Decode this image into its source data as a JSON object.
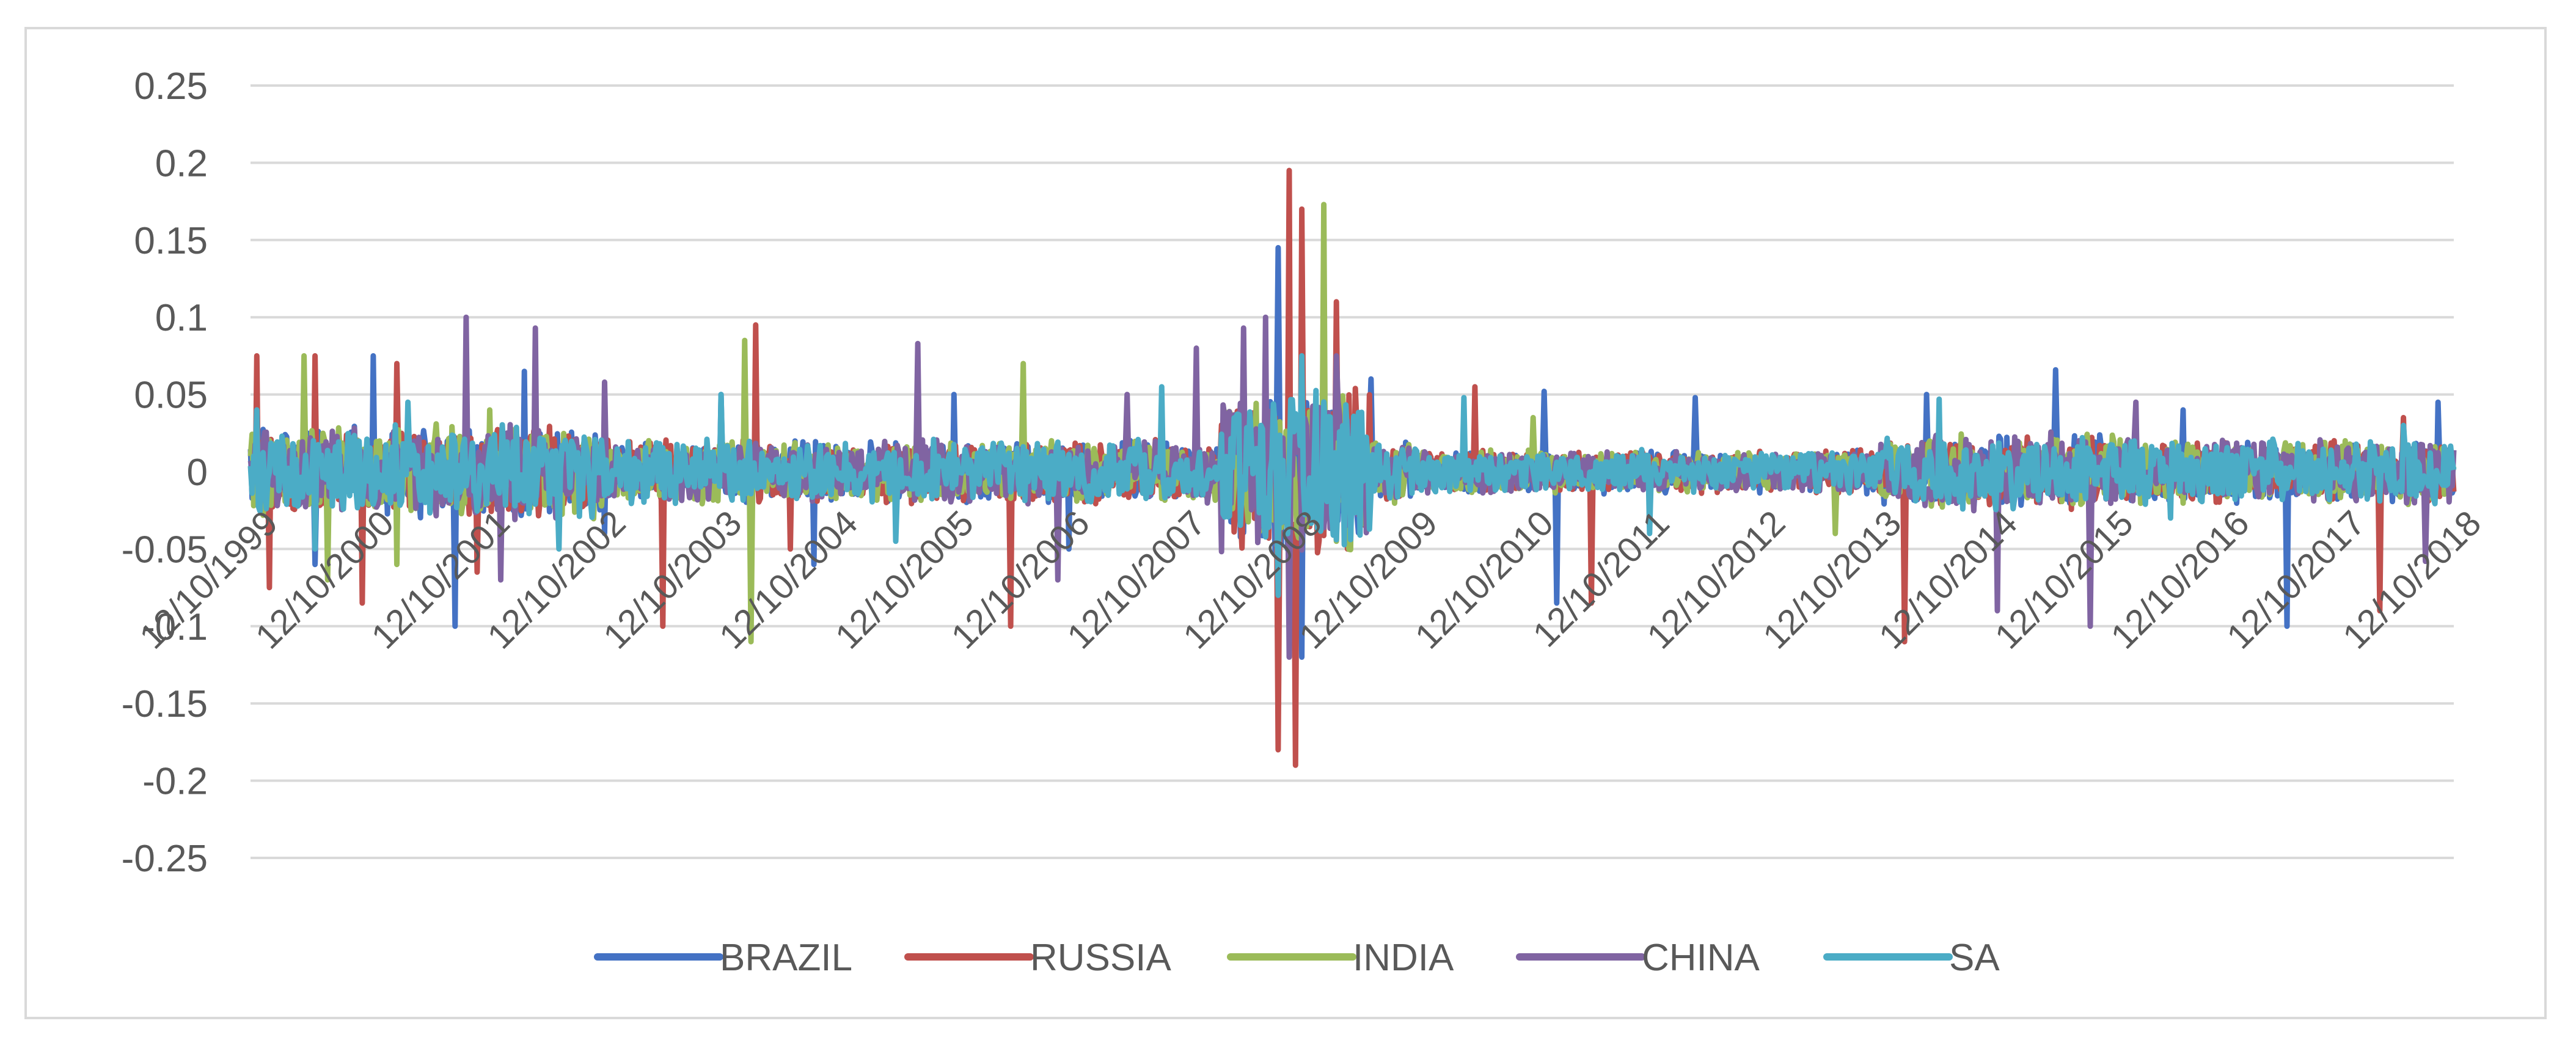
{
  "chart_data": {
    "type": "line",
    "title": "",
    "xlabel": "",
    "ylabel": "",
    "ylim": [
      -0.25,
      0.25
    ],
    "y_ticks": [
      "0.25",
      "0.2",
      "0.15",
      "0.1",
      "0.05",
      "0",
      "-0.05",
      "-0.1",
      "-0.15",
      "-0.2",
      "-0.25"
    ],
    "y_tick_values": [
      0.25,
      0.2,
      0.15,
      0.1,
      0.05,
      0,
      -0.05,
      -0.1,
      -0.15,
      -0.2,
      -0.25
    ],
    "x_ticks": [
      "12/10/1999",
      "12/10/2000",
      "12/10/2001",
      "12/10/2002",
      "12/10/2003",
      "12/10/2004",
      "12/10/2005",
      "12/10/2006",
      "12/10/2007",
      "12/10/2008",
      "12/10/2009",
      "12/10/2010",
      "12/10/2011",
      "12/10/2012",
      "12/10/2013",
      "12/10/2014",
      "12/10/2015",
      "12/10/2016",
      "12/10/2017",
      "12/10/2018"
    ],
    "x_range": [
      "12/10/1999",
      "12/10/2018"
    ],
    "grid": true,
    "legend_position": "bottom",
    "series": [
      {
        "name": "BRAZIL",
        "color": "#4472c4",
        "points": [
          [
            "2000",
            0.05
          ],
          [
            "2000.5",
            -0.06
          ],
          [
            "2001",
            0.075
          ],
          [
            "2001.7",
            -0.1
          ],
          [
            "2002.3",
            0.065
          ],
          [
            "2003",
            -0.04
          ],
          [
            "2004",
            0.05
          ],
          [
            "2004.8",
            -0.06
          ],
          [
            "2006",
            0.05
          ],
          [
            "2007",
            -0.05
          ],
          [
            "2008.8",
            0.145
          ],
          [
            "2009",
            -0.12
          ],
          [
            "2009.6",
            0.06
          ],
          [
            "2011.1",
            0.052
          ],
          [
            "2011.2",
            -0.085
          ],
          [
            "2012.4",
            0.048
          ],
          [
            "2014.4",
            0.05
          ],
          [
            "2015.5",
            0.066
          ],
          [
            "2016.6",
            0.04
          ],
          [
            "2017.5",
            -0.1
          ],
          [
            "2018.8",
            0.045
          ]
        ]
      },
      {
        "name": "RUSSIA",
        "color": "#c0504d",
        "points": [
          [
            "2000",
            0.075
          ],
          [
            "2000.1",
            -0.075
          ],
          [
            "2000.5",
            0.075
          ],
          [
            "2000.9",
            -0.085
          ],
          [
            "2001.2",
            0.07
          ],
          [
            "2001.9",
            -0.065
          ],
          [
            "2003.5",
            0.08
          ],
          [
            "2003.5",
            -0.1
          ],
          [
            "2004.3",
            0.095
          ],
          [
            "2004.6",
            -0.05
          ],
          [
            "2006.5",
            0.105
          ],
          [
            "2006.5",
            -0.1
          ],
          [
            "2008.8",
            -0.18
          ],
          [
            "2008.9",
            0.195
          ],
          [
            "2008.95",
            -0.19
          ],
          [
            "2009.0",
            0.17
          ],
          [
            "2009.3",
            0.11
          ],
          [
            "2009.4",
            -0.05
          ],
          [
            "2010.5",
            0.055
          ],
          [
            "2011.5",
            -0.085
          ],
          [
            "2014.2",
            0.055
          ],
          [
            "2014.2",
            -0.11
          ],
          [
            "2018.3",
            -0.09
          ],
          [
            "2018.5",
            0.035
          ]
        ]
      },
      {
        "name": "INDIA",
        "color": "#9bbb59",
        "points": [
          [
            "2000.4",
            0.075
          ],
          [
            "2000.6",
            -0.07
          ],
          [
            "2001.2",
            -0.06
          ],
          [
            "2002.0",
            0.04
          ],
          [
            "2004.2",
            0.085
          ],
          [
            "2004.25",
            -0.11
          ],
          [
            "2006.6",
            0.07
          ],
          [
            "2008.9",
            -0.1
          ],
          [
            "2009.2",
            0.173
          ],
          [
            "2009.3",
            -0.045
          ],
          [
            "2011.0",
            0.035
          ],
          [
            "2013.6",
            -0.04
          ],
          [
            "2018.0",
            0.02
          ]
        ]
      },
      {
        "name": "CHINA",
        "color": "#8064a2",
        "points": [
          [
            "2001.8",
            0.1
          ],
          [
            "2002.1",
            -0.07
          ],
          [
            "2002.4",
            0.093
          ],
          [
            "2003.0",
            0.058
          ],
          [
            "2005.7",
            0.083
          ],
          [
            "2006.9",
            -0.07
          ],
          [
            "2007.5",
            0.05
          ],
          [
            "2008.1",
            0.08
          ],
          [
            "2008.5",
            0.093
          ],
          [
            "2008.7",
            0.1
          ],
          [
            "2008.9",
            -0.12
          ],
          [
            "2009.3",
            0.075
          ],
          [
            "2015.0",
            0.1
          ],
          [
            "2015.0",
            -0.09
          ],
          [
            "2015.8",
            -0.1
          ],
          [
            "2016.2",
            0.045
          ],
          [
            "2018.7",
            -0.058
          ]
        ]
      },
      {
        "name": "SA",
        "color": "#4bacc6",
        "points": [
          [
            "2000",
            0.04
          ],
          [
            "2000.5",
            -0.05
          ],
          [
            "2001.3",
            0.045
          ],
          [
            "2002.6",
            -0.05
          ],
          [
            "2004.0",
            0.05
          ],
          [
            "2005.5",
            -0.045
          ],
          [
            "2007.8",
            0.055
          ],
          [
            "2008.8",
            -0.08
          ],
          [
            "2009.0",
            0.075
          ],
          [
            "2010.4",
            0.048
          ],
          [
            "2012.0",
            -0.04
          ],
          [
            "2014.5",
            0.047
          ],
          [
            "2016.5",
            -0.03
          ],
          [
            "2018.5",
            0.03
          ]
        ]
      }
    ]
  }
}
